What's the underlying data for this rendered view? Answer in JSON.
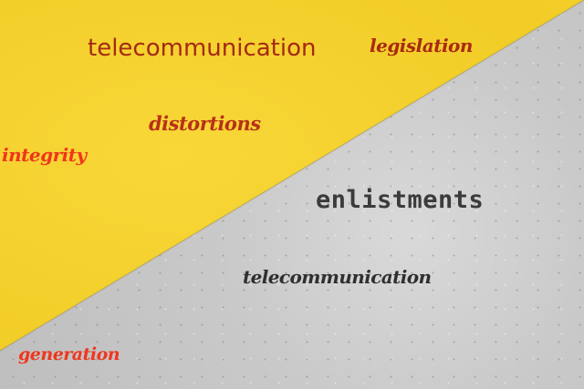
{
  "words": [
    "telecommunication",
    "legislation",
    "distortions",
    "integrity",
    "enlistments",
    "telecommunication",
    "generation"
  ],
  "colors": {
    "yellow": "#f4cf2a",
    "concrete": "#c9c9c9",
    "dark_red": "#a52a12",
    "bright_red": "#f0361c",
    "charcoal": "#3b3b3b"
  }
}
